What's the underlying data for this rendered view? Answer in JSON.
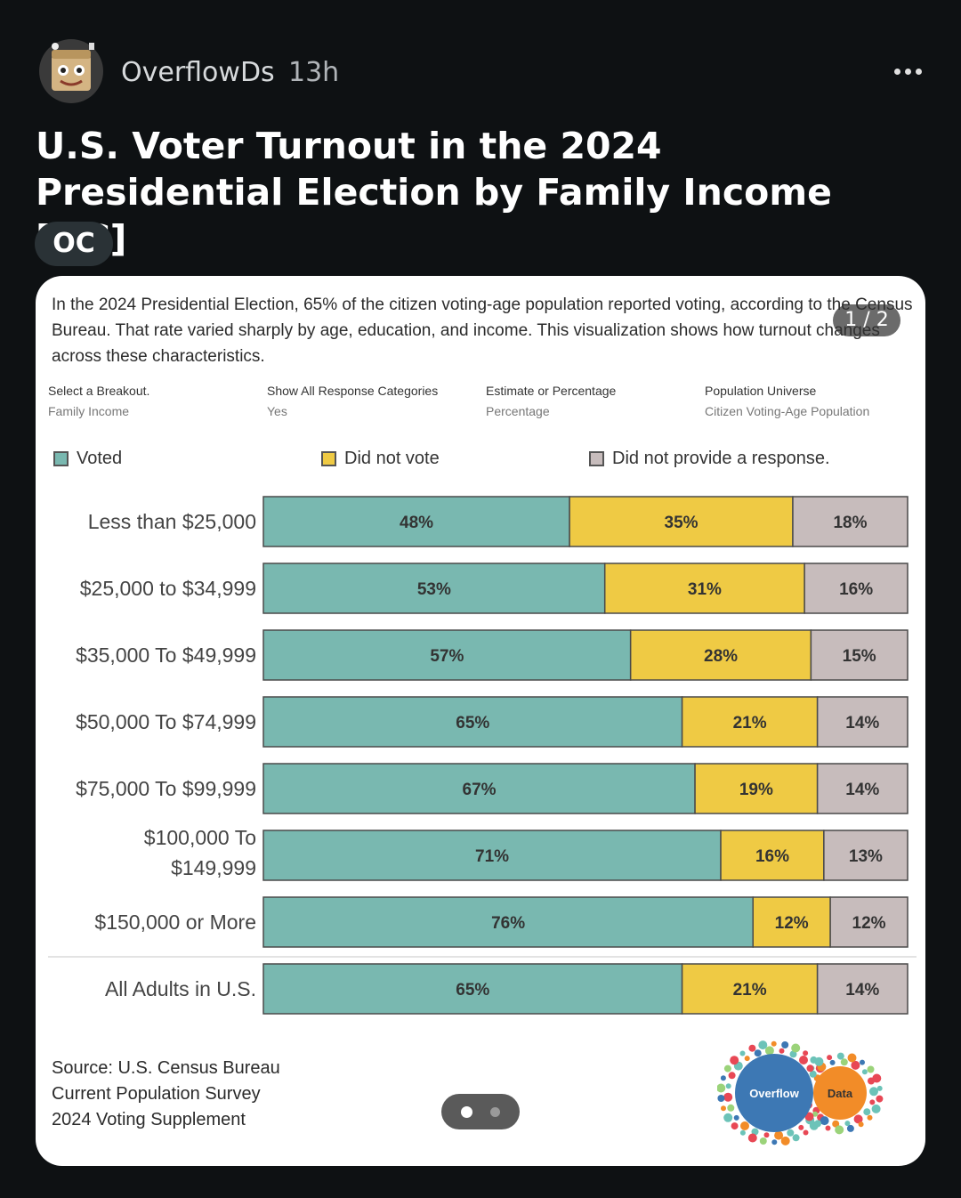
{
  "post": {
    "username": "OverflowDs",
    "time": "13h",
    "title": "U.S. Voter Turnout in the 2024 Presidential Election by Family Income [OC]",
    "flair": "OC",
    "page_counter": "1 / 2"
  },
  "card": {
    "intro": "In the 2024 Presidential Election, 65% of the citizen voting-age population reported voting, according to the Census Bureau. That rate varied sharply by age, education, and income. This visualization shows how turnout changes across these characteristics.",
    "filters": [
      {
        "label": "Select a Breakout.",
        "value": "Family Income"
      },
      {
        "label": "Show All Response Categories",
        "value": "Yes"
      },
      {
        "label": "Estimate or Percentage",
        "value": "Percentage"
      },
      {
        "label": "Population Universe",
        "value": "Citizen Voting-Age Population"
      }
    ],
    "source": [
      "Source: U.S. Census Bureau",
      "Current Population Survey",
      "2024 Voting Supplement"
    ],
    "logo": {
      "left_word": "Overflow",
      "right_word": "Data"
    }
  },
  "colors": {
    "voted": "#79b8b0",
    "did_not_vote": "#efca44",
    "no_response": "#c7bcbc",
    "bar_border": "#4a4a4a"
  },
  "chart_data": {
    "type": "bar",
    "orientation": "horizontal-stacked-100",
    "legend": [
      "Voted",
      "Did not vote",
      "Did not provide a response."
    ],
    "categories": [
      [
        "Less than $25,000"
      ],
      [
        "$25,000 to $34,999"
      ],
      [
        "$35,000 To $49,999"
      ],
      [
        "$50,000 To $74,999"
      ],
      [
        "$75,000 To $99,999"
      ],
      [
        "$100,000 To",
        "$149,999"
      ],
      [
        "$150,000 or More"
      ],
      [
        "All Adults in U.S."
      ]
    ],
    "series": [
      {
        "name": "Voted",
        "values": [
          48,
          53,
          57,
          65,
          67,
          71,
          76,
          65
        ]
      },
      {
        "name": "Did not vote",
        "values": [
          35,
          31,
          28,
          21,
          19,
          16,
          12,
          21
        ]
      },
      {
        "name": "Did not provide a response.",
        "values": [
          18,
          16,
          15,
          14,
          14,
          13,
          12,
          14
        ]
      }
    ],
    "value_suffix": "%"
  }
}
